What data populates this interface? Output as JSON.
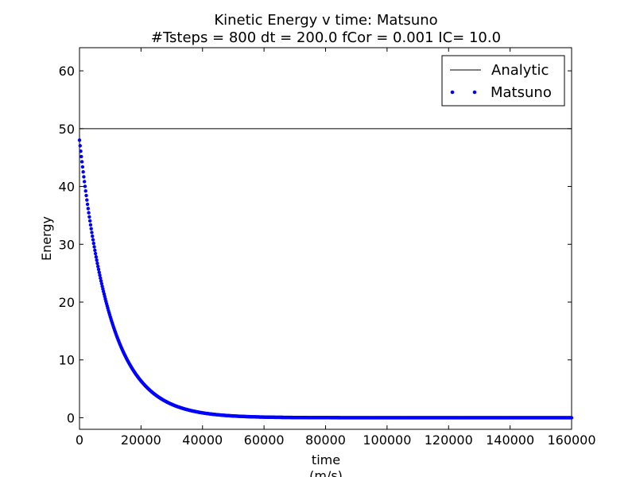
{
  "chart_data": {
    "type": "line",
    "title_lines": [
      "Kinetic Energy v time: Matsuno",
      "#Tsteps = 800 dt = 200.0 fCor = 0.001 IC= 10.0"
    ],
    "xlabel_lines": [
      "time",
      "(m/s)"
    ],
    "ylabel": "Energy",
    "xlim": [
      0,
      160000
    ],
    "ylim": [
      -2,
      64
    ],
    "x_ticks": [
      0,
      20000,
      40000,
      60000,
      80000,
      100000,
      120000,
      140000,
      160000
    ],
    "y_ticks": [
      0,
      10,
      20,
      30,
      40,
      50,
      60
    ],
    "legend": {
      "position": "top-right"
    },
    "grid": false,
    "series": [
      {
        "name": "Analytic",
        "style": "solid-line",
        "color": "#000000",
        "x": [
          0,
          160000
        ],
        "y": [
          50,
          50
        ]
      },
      {
        "name": "Matsuno",
        "style": "dots",
        "color": "#0000ff",
        "x0": 0,
        "dx": 200,
        "count": 801,
        "initial": 48.0,
        "decay_per_step": 0.98
      }
    ]
  }
}
